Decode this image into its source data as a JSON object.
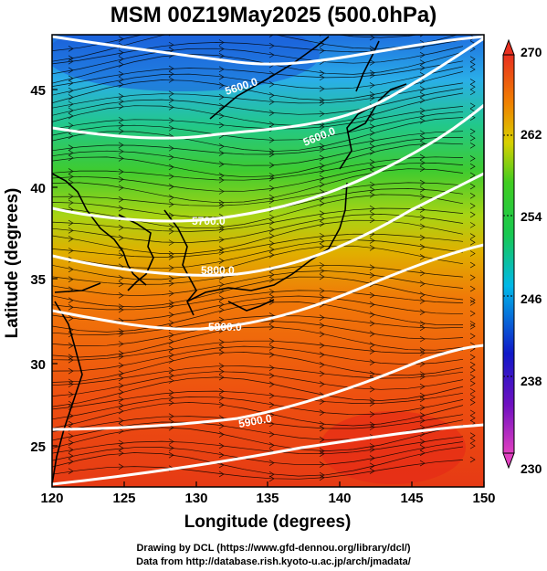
{
  "title": "MSM 00Z19May2025 (500.0hPa)",
  "x_axis": {
    "label": "Longitude (degrees)",
    "range": [
      120,
      150
    ],
    "ticks": [
      "120",
      "125",
      "130",
      "135",
      "140",
      "145",
      "150"
    ]
  },
  "y_axis": {
    "label": "Latitude  (degrees)",
    "range": [
      23,
      48
    ],
    "ticks": [
      "25",
      "30",
      "35",
      "40",
      "45"
    ]
  },
  "colorbar": {
    "range": [
      230,
      270
    ],
    "ticks": [
      "270",
      "262",
      "254",
      "246",
      "238",
      "230"
    ],
    "colors": [
      "#e040c0",
      "#1010c0",
      "#00b8e8",
      "#20c840",
      "#c8d000",
      "#f07000",
      "#e83020"
    ]
  },
  "contours": [
    {
      "label": "5600.0"
    },
    {
      "label": "5700.0"
    },
    {
      "label": "5800.0"
    },
    {
      "label": "5900.0"
    }
  ],
  "credits": {
    "line1": "Drawing by DCL (https://www.gfd-dennou.org/library/dcl/)",
    "line2": "Data from http://database.rish.kyoto-u.ac.jp/arch/jmadata/"
  }
}
